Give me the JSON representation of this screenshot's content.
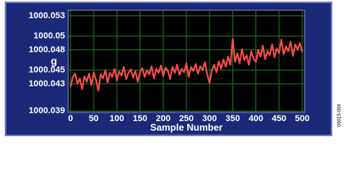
{
  "chart_data": {
    "type": "line",
    "xlabel": "Sample Number",
    "ylabel": "g",
    "x": [
      0,
      5,
      10,
      15,
      20,
      25,
      30,
      35,
      40,
      45,
      50,
      55,
      60,
      65,
      70,
      75,
      80,
      85,
      90,
      95,
      100,
      105,
      110,
      115,
      120,
      125,
      130,
      135,
      140,
      145,
      150,
      155,
      160,
      165,
      170,
      175,
      180,
      185,
      190,
      195,
      200,
      205,
      210,
      215,
      220,
      225,
      230,
      235,
      240,
      245,
      250,
      255,
      260,
      265,
      270,
      275,
      280,
      285,
      290,
      295,
      300,
      305,
      310,
      315,
      320,
      325,
      330,
      335,
      340,
      345,
      350,
      355,
      360,
      365,
      370,
      375,
      380,
      385,
      390,
      395,
      400,
      405,
      410,
      415,
      420,
      425,
      430,
      435,
      440,
      445,
      450,
      455,
      460,
      465,
      470,
      475,
      480,
      485,
      490,
      495,
      500
    ],
    "series": [
      {
        "color": "#ff4d4d",
        "values": [
          1000.0425,
          1000.044,
          1000.0445,
          1000.043,
          1000.0438,
          1000.0422,
          1000.0441,
          1000.0433,
          1000.0445,
          1000.0428,
          1000.0447,
          1000.0436,
          1000.042,
          1000.0444,
          1000.0438,
          1000.045,
          1000.0432,
          1000.0446,
          1000.044,
          1000.0452,
          1000.0435,
          1000.0448,
          1000.0442,
          1000.0455,
          1000.0437,
          1000.0446,
          1000.0451,
          1000.0439,
          1000.0449,
          1000.0433,
          1000.0447,
          1000.0453,
          1000.044,
          1000.045,
          1000.0444,
          1000.0456,
          1000.0438,
          1000.0452,
          1000.0446,
          1000.0457,
          1000.0441,
          1000.0454,
          1000.0449,
          1000.0437,
          1000.0455,
          1000.0446,
          1000.0458,
          1000.0443,
          1000.0452,
          1000.0447,
          1000.046,
          1000.044,
          1000.0455,
          1000.0449,
          1000.0459,
          1000.0445,
          1000.0456,
          1000.045,
          1000.0462,
          1000.0444,
          1000.0431,
          1000.045,
          1000.0458,
          1000.0447,
          1000.0463,
          1000.0452,
          1000.0466,
          1000.0455,
          1000.047,
          1000.0458,
          1000.0496,
          1000.0462,
          1000.0475,
          1000.046,
          1000.0481,
          1000.0465,
          1000.0472,
          1000.0458,
          1000.0478,
          1000.0467,
          1000.0462,
          1000.048,
          1000.047,
          1000.0486,
          1000.0466,
          1000.0478,
          1000.0472,
          1000.0488,
          1000.0469,
          1000.0482,
          1000.0475,
          1000.0495,
          1000.0473,
          1000.0485,
          1000.0478,
          1000.0492,
          1000.0471,
          1000.0488,
          1000.048,
          1000.049,
          1000.0476
        ]
      }
    ],
    "xlim": [
      -5,
      505
    ],
    "xticks": [
      0,
      50,
      100,
      150,
      200,
      250,
      300,
      350,
      400,
      450,
      500
    ],
    "ylim": [
      1000.0388,
      1000.0538
    ],
    "yticks": [
      1000.039,
      1000.043,
      1000.045,
      1000.048,
      1000.05,
      1000.053
    ],
    "grid": true,
    "grid_color": "#1f7a1f",
    "background": "#000000"
  },
  "figure_id": "09015-004"
}
